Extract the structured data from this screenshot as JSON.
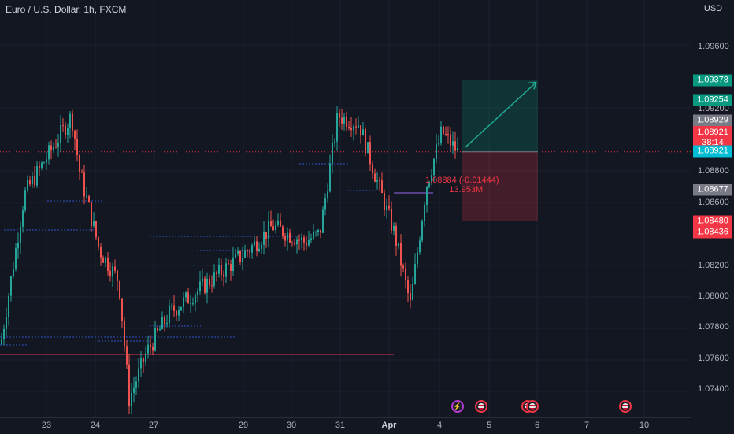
{
  "header": {
    "title": "Euro / U.S. Dollar, 1h, FXCM"
  },
  "price_axis": {
    "currency": "USD",
    "ticks": [
      "1.09600",
      "1.09200",
      "1.08800",
      "1.08600",
      "1.08200",
      "1.08000",
      "1.07800",
      "1.07600",
      "1.07400"
    ]
  },
  "price_labels": {
    "target": "1.09378",
    "level_green": "1.09254",
    "prev_close": "1.08929",
    "bid": "1.08921",
    "countdown": "38:14",
    "ask": "1.08921",
    "level_gray": "1.08677",
    "stop": "1.08480",
    "level_red": "1.08436"
  },
  "time_axis": {
    "ticks": [
      "23",
      "24",
      "27",
      "29",
      "30",
      "31",
      "Apr",
      "4",
      "5",
      "6",
      "7",
      "10"
    ]
  },
  "annotation": {
    "line1": "1.08884 (-0.01444)",
    "line2": "13.953M"
  },
  "events": [
    {
      "icon": "lightning-icon"
    },
    {
      "icon": "us-flag-icon"
    },
    {
      "icon": "us-flag-icon"
    },
    {
      "icon": "us-flag-icon"
    }
  ],
  "colors": {
    "up": "#26a69a",
    "down": "#ef5350",
    "background": "#131722",
    "accent_teal": "#22ab94",
    "accent_red": "#f23645"
  },
  "chart_data": {
    "type": "candlestick",
    "symbol": "Euro / U.S. Dollar",
    "interval": "1h",
    "ylim": [
      1.073,
      1.0985
    ],
    "key_points": [
      {
        "x": "23",
        "price": 1.077
      },
      {
        "x": "23",
        "price": 1.0865
      },
      {
        "x": "23",
        "price": 1.0915
      },
      {
        "x": "24",
        "price": 1.088
      },
      {
        "x": "24",
        "price": 1.083
      },
      {
        "x": "24",
        "price": 1.081
      },
      {
        "x": "27",
        "price": 1.0735
      },
      {
        "x": "27",
        "price": 1.0765
      },
      {
        "x": "27",
        "price": 1.079
      },
      {
        "x": "29",
        "price": 1.082
      },
      {
        "x": "29",
        "price": 1.083
      },
      {
        "x": "30",
        "price": 1.0845
      },
      {
        "x": "30",
        "price": 1.0835
      },
      {
        "x": "31",
        "price": 1.084
      },
      {
        "x": "31",
        "price": 1.0915
      },
      {
        "x": "31",
        "price": 1.091
      },
      {
        "x": "Apr",
        "price": 1.087
      },
      {
        "x": "Apr",
        "price": 1.084
      },
      {
        "x": "Apr",
        "price": 1.0795
      },
      {
        "x": "4",
        "price": 1.087
      },
      {
        "x": "4",
        "price": 1.0905
      },
      {
        "x": "4",
        "price": 1.0892
      }
    ],
    "position": {
      "entry": 1.08921,
      "target": 1.09378,
      "stop": 1.0848
    },
    "grid": true
  }
}
